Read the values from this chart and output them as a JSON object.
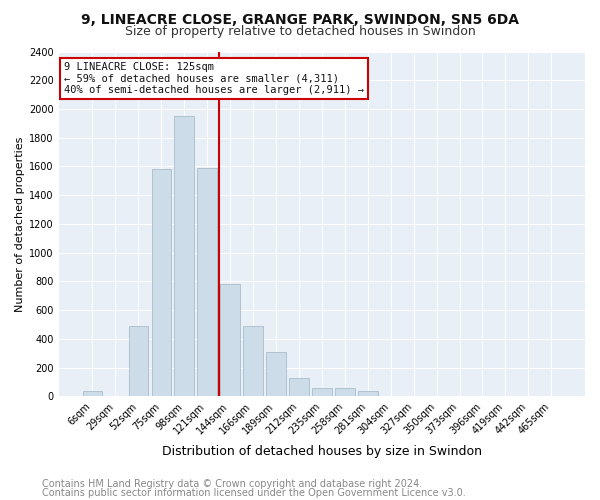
{
  "title1": "9, LINEACRE CLOSE, GRANGE PARK, SWINDON, SN5 6DA",
  "title2": "Size of property relative to detached houses in Swindon",
  "xlabel": "Distribution of detached houses by size in Swindon",
  "ylabel": "Number of detached properties",
  "categories": [
    "6sqm",
    "29sqm",
    "52sqm",
    "75sqm",
    "98sqm",
    "121sqm",
    "144sqm",
    "166sqm",
    "189sqm",
    "212sqm",
    "235sqm",
    "258sqm",
    "281sqm",
    "304sqm",
    "327sqm",
    "350sqm",
    "373sqm",
    "396sqm",
    "419sqm",
    "442sqm",
    "465sqm"
  ],
  "values": [
    35,
    0,
    490,
    1580,
    1950,
    1590,
    780,
    490,
    310,
    130,
    60,
    55,
    40,
    0,
    0,
    0,
    0,
    0,
    0,
    0,
    0
  ],
  "bar_color": "#ccdce8",
  "bar_edge_color": "#aabccc",
  "vline_color": "#cc0000",
  "vline_x": 5.5,
  "annotation_line1": "9 LINEACRE CLOSE: 125sqm",
  "annotation_line2": "← 59% of detached houses are smaller (4,311)",
  "annotation_line3": "40% of semi-detached houses are larger (2,911) →",
  "annotation_box_facecolor": "#ffffff",
  "annotation_box_edgecolor": "#cc0000",
  "footer1": "Contains HM Land Registry data © Crown copyright and database right 2024.",
  "footer2": "Contains public sector information licensed under the Open Government Licence v3.0.",
  "ylim": [
    0,
    2400
  ],
  "yticks": [
    0,
    200,
    400,
    600,
    800,
    1000,
    1200,
    1400,
    1600,
    1800,
    2000,
    2200,
    2400
  ],
  "background_color": "#e8eff6",
  "grid_color": "#ffffff",
  "title1_fontsize": 10,
  "title2_fontsize": 9,
  "xlabel_fontsize": 9,
  "ylabel_fontsize": 8,
  "tick_fontsize": 7,
  "annotation_fontsize": 7.5,
  "footer_fontsize": 7
}
